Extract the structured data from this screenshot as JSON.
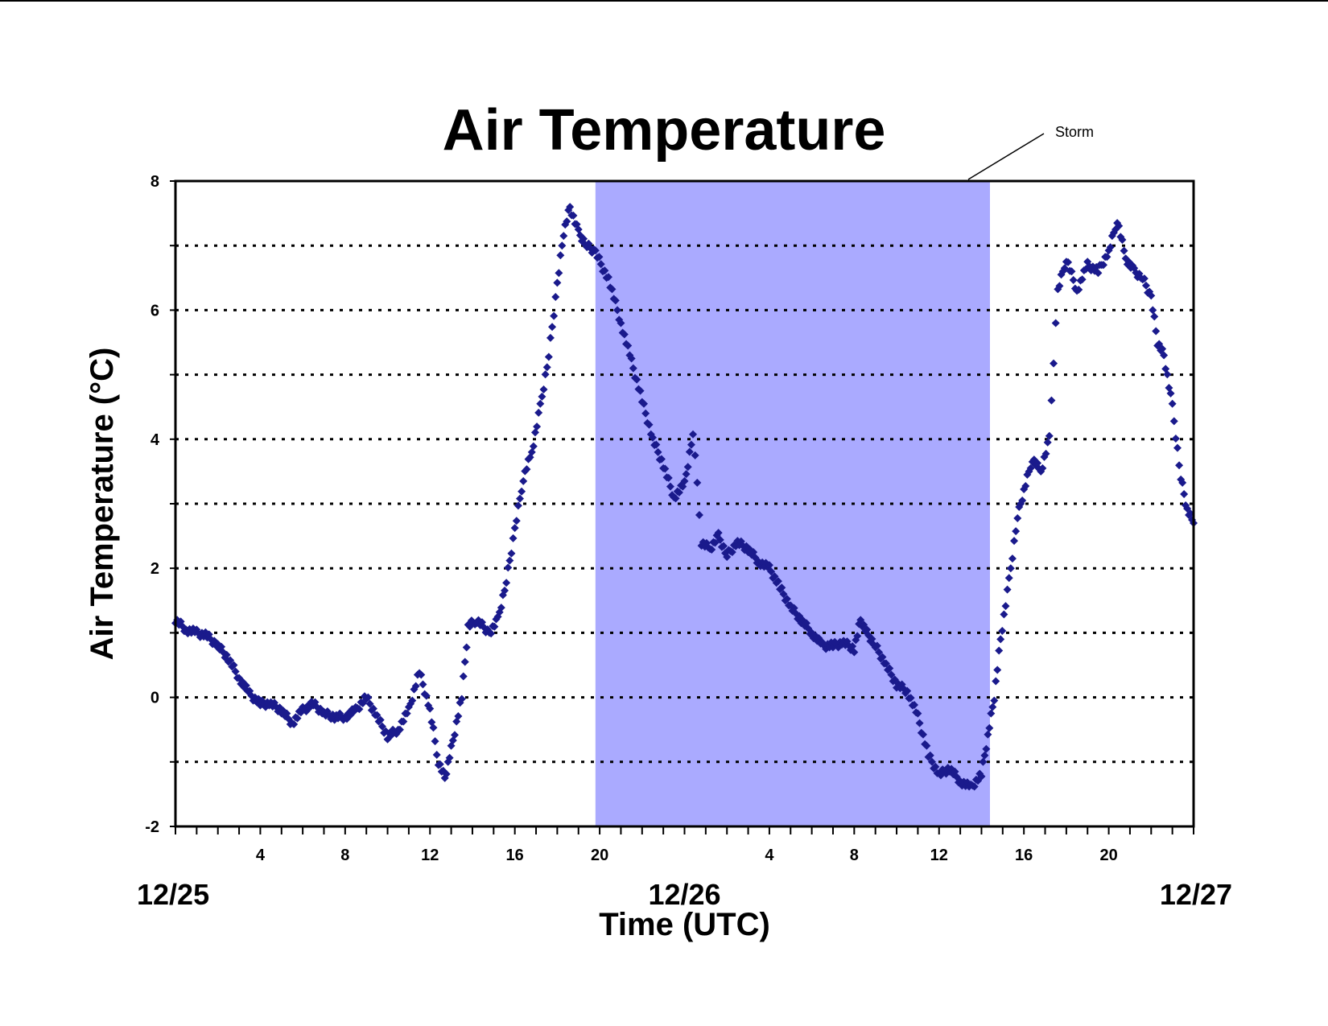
{
  "chart_data": {
    "type": "scatter",
    "title": "Air Temperature",
    "xlabel": "Time (UTC)",
    "ylabel": "Air Temperature (°C)",
    "ylim": [
      -2,
      8
    ],
    "yticks": [
      -2,
      0,
      2,
      4,
      6,
      8
    ],
    "grid": "dotted horizontal lines at every 1 °C",
    "xlim_hours": [
      0,
      48
    ],
    "hour_tick_labels": [
      {
        "hour": 4,
        "label": "4"
      },
      {
        "hour": 8,
        "label": "8"
      },
      {
        "hour": 12,
        "label": "12"
      },
      {
        "hour": 16,
        "label": "16"
      },
      {
        "hour": 20,
        "label": "20"
      },
      {
        "hour": 28,
        "label": "4"
      },
      {
        "hour": 32,
        "label": "8"
      },
      {
        "hour": 36,
        "label": "12"
      },
      {
        "hour": 40,
        "label": "16"
      },
      {
        "hour": 44,
        "label": "20"
      }
    ],
    "date_labels": [
      {
        "hour": 0,
        "label": "12/25"
      },
      {
        "hour": 24,
        "label": "12/26"
      },
      {
        "hour": 48,
        "label": "12/27"
      }
    ],
    "shaded_region": {
      "label": "Storm",
      "x_start_hours": 19.8,
      "x_end_hours": 38.4,
      "color": "#aaaaff"
    },
    "marker_color": "#1a1a8c",
    "series": [
      {
        "points": [
          [
            0,
            1.2
          ],
          [
            0.5,
            1.05
          ],
          [
            1,
            1.0
          ],
          [
            1.5,
            0.95
          ],
          [
            2,
            0.8
          ],
          [
            2.5,
            0.6
          ],
          [
            3,
            0.3
          ],
          [
            3.5,
            0.05
          ],
          [
            4,
            -0.1
          ],
          [
            4.5,
            -0.1
          ],
          [
            5,
            -0.2
          ],
          [
            5.5,
            -0.4
          ],
          [
            6,
            -0.2
          ],
          [
            6.5,
            -0.1
          ],
          [
            7,
            -0.25
          ],
          [
            7.5,
            -0.3
          ],
          [
            8,
            -0.3
          ],
          [
            8.5,
            -0.2
          ],
          [
            9,
            0.0
          ],
          [
            9.5,
            -0.3
          ],
          [
            10,
            -0.6
          ],
          [
            10.5,
            -0.5
          ],
          [
            11,
            -0.2
          ],
          [
            11.5,
            0.4
          ],
          [
            12,
            -0.2
          ],
          [
            12.4,
            -1.0
          ],
          [
            12.7,
            -1.25
          ],
          [
            13,
            -0.8
          ],
          [
            13.5,
            0.0
          ],
          [
            13.8,
            1.1
          ],
          [
            14.2,
            1.2
          ],
          [
            14.8,
            1.0
          ],
          [
            15.2,
            1.2
          ],
          [
            15.6,
            1.8
          ],
          [
            16,
            2.6
          ],
          [
            16.4,
            3.4
          ],
          [
            16.8,
            3.8
          ],
          [
            17.2,
            4.5
          ],
          [
            17.6,
            5.3
          ],
          [
            18,
            6.4
          ],
          [
            18.3,
            7.2
          ],
          [
            18.6,
            7.6
          ],
          [
            19,
            7.2
          ],
          [
            19.4,
            7.0
          ],
          [
            19.8,
            6.9
          ],
          [
            20.5,
            6.4
          ],
          [
            21,
            5.8
          ],
          [
            21.5,
            5.2
          ],
          [
            22,
            4.6
          ],
          [
            22.5,
            4.0
          ],
          [
            23,
            3.6
          ],
          [
            23.5,
            3.1
          ],
          [
            24,
            3.3
          ],
          [
            24.4,
            4.1
          ],
          [
            24.6,
            3.3
          ],
          [
            24.8,
            2.4
          ],
          [
            25.2,
            2.3
          ],
          [
            25.6,
            2.5
          ],
          [
            26,
            2.2
          ],
          [
            26.5,
            2.4
          ],
          [
            27,
            2.3
          ],
          [
            27.5,
            2.1
          ],
          [
            28,
            2.0
          ],
          [
            28.5,
            1.7
          ],
          [
            29,
            1.4
          ],
          [
            29.5,
            1.2
          ],
          [
            30,
            1.0
          ],
          [
            30.5,
            0.8
          ],
          [
            31,
            0.8
          ],
          [
            31.5,
            0.85
          ],
          [
            32,
            0.75
          ],
          [
            32.3,
            1.2
          ],
          [
            32.6,
            1.0
          ],
          [
            33,
            0.8
          ],
          [
            33.5,
            0.5
          ],
          [
            34,
            0.2
          ],
          [
            34.5,
            0.1
          ],
          [
            35,
            -0.3
          ],
          [
            35.5,
            -0.9
          ],
          [
            36,
            -1.2
          ],
          [
            36.5,
            -1.1
          ],
          [
            37,
            -1.3
          ],
          [
            37.5,
            -1.4
          ],
          [
            38,
            -1.2
          ],
          [
            38.3,
            -0.6
          ],
          [
            38.6,
            0.0
          ],
          [
            38.9,
            0.9
          ],
          [
            39.3,
            1.8
          ],
          [
            39.7,
            2.8
          ],
          [
            40,
            3.2
          ],
          [
            40.4,
            3.7
          ],
          [
            40.8,
            3.5
          ],
          [
            41.2,
            4.0
          ],
          [
            41.4,
            5.2
          ],
          [
            41.6,
            6.3
          ],
          [
            42,
            6.8
          ],
          [
            42.5,
            6.3
          ],
          [
            43,
            6.7
          ],
          [
            43.5,
            6.6
          ],
          [
            44,
            6.9
          ],
          [
            44.4,
            7.4
          ],
          [
            44.8,
            6.8
          ],
          [
            45.2,
            6.6
          ],
          [
            45.6,
            6.5
          ],
          [
            46,
            6.2
          ],
          [
            46.3,
            5.5
          ],
          [
            46.6,
            5.3
          ],
          [
            47,
            4.5
          ],
          [
            47.4,
            3.4
          ],
          [
            47.7,
            2.9
          ],
          [
            48,
            2.7
          ]
        ]
      }
    ]
  }
}
